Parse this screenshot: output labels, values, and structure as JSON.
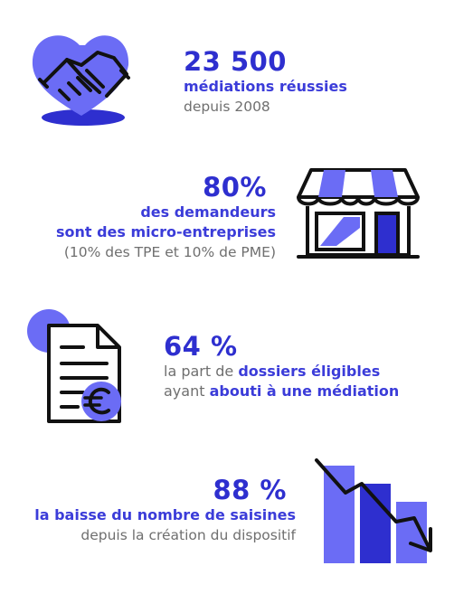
{
  "stats": [
    {
      "value": "23 500",
      "line1": "médiations réussies",
      "line2": "depuis 2008",
      "icon": "handshake-heart-icon"
    },
    {
      "value": "80%",
      "line1": "des demandeurs",
      "line2": "sont des micro-entreprises",
      "line3": "(10% des TPE et 10% de PME)",
      "icon": "storefront-icon"
    },
    {
      "value": "64 %",
      "line1_pre": "la part de ",
      "line1_strong": "dossiers éligibles",
      "line2_pre": "ayant ",
      "line2_strong": "abouti à une médiation",
      "icon": "euro-document-icon"
    },
    {
      "value": "88 %",
      "line1": "la baisse du nombre de saisines",
      "line2": "depuis la création du dispositif",
      "icon": "declining-bar-chart-icon"
    }
  ],
  "colors": {
    "primary": "#2e2fcf",
    "light": "#6b6cf5",
    "muted": "#6f6f6f"
  }
}
